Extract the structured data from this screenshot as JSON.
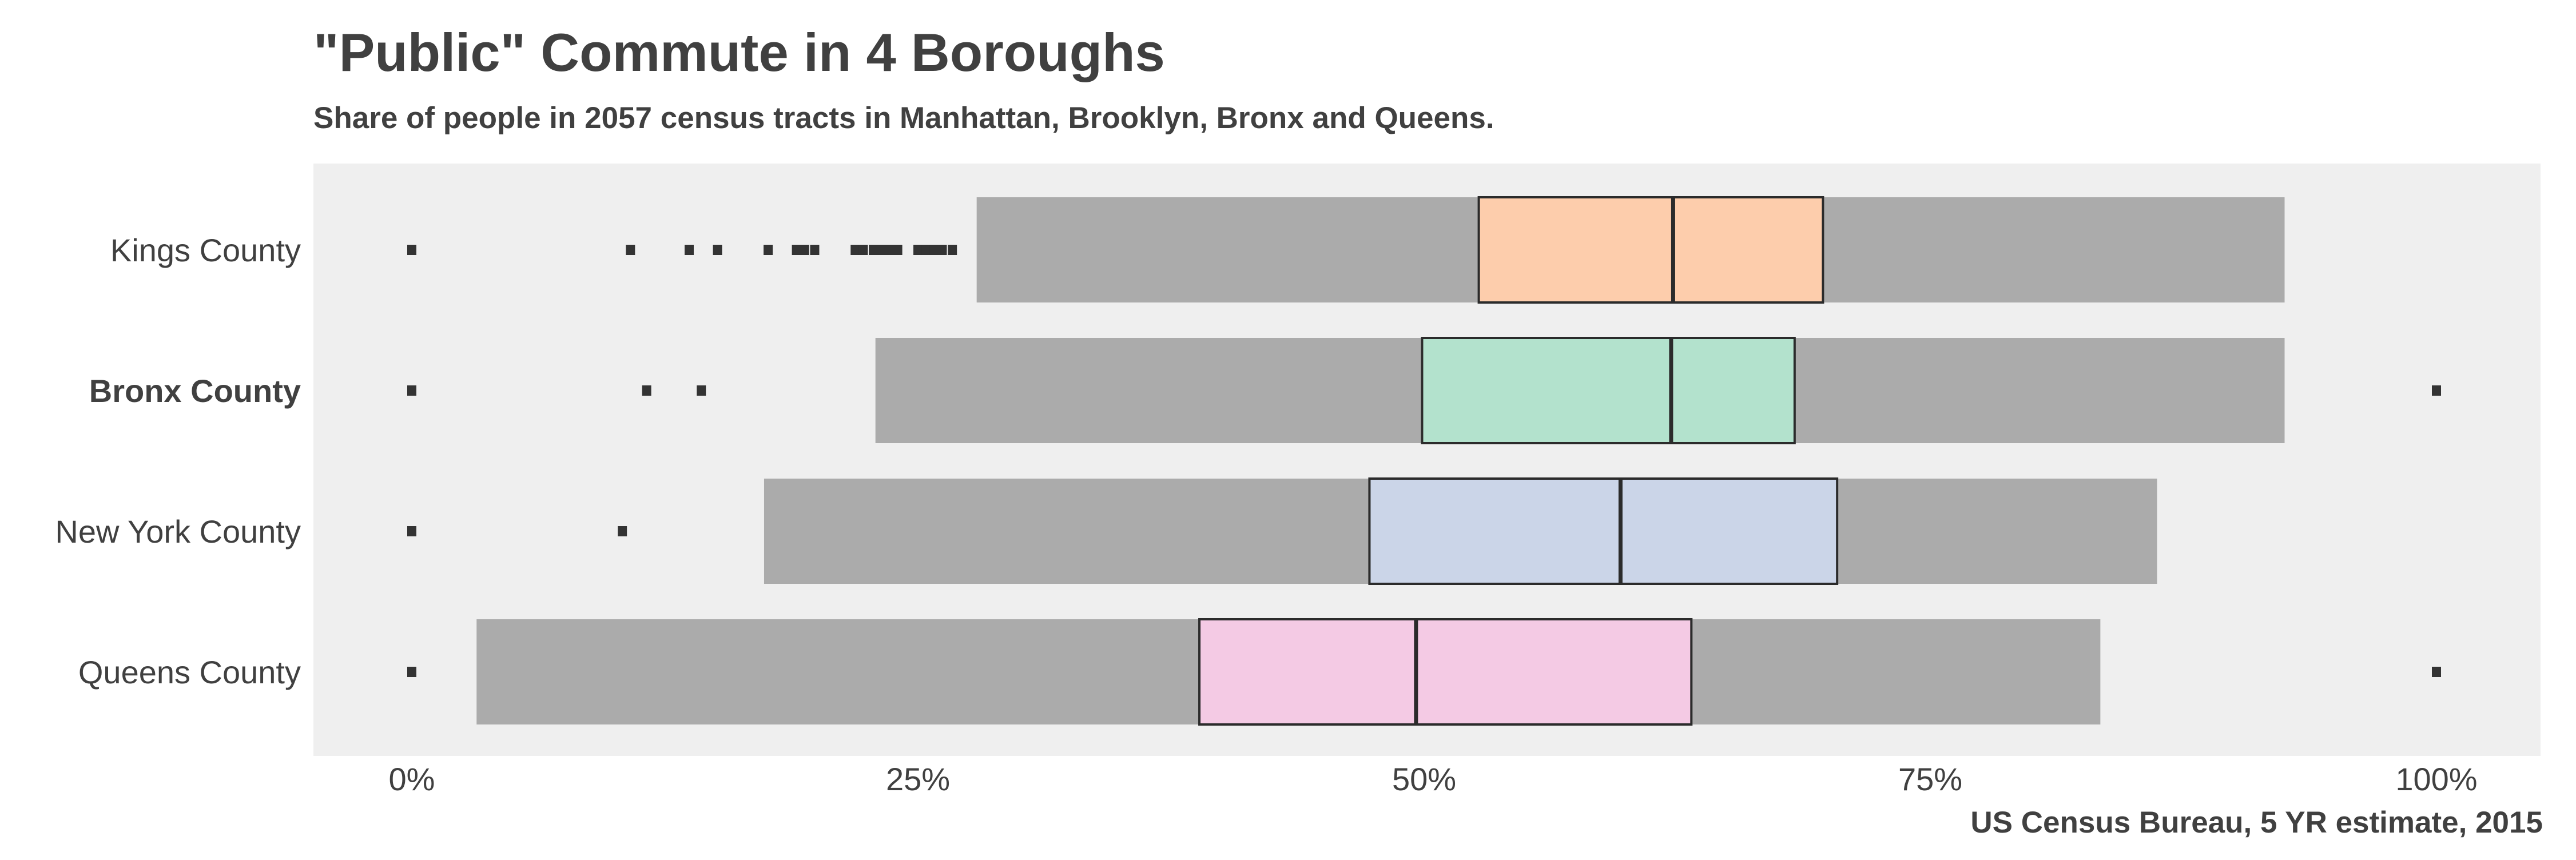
{
  "chart_data": {
    "type": "boxplot",
    "title": "\"Public\" Commute in 4 Boroughs",
    "subtitle": "Share of people in 2057 census tracts in Manhattan, Brooklyn, Bronx and Queens.",
    "caption": "US Census Bureau, 5 YR estimate, 2015",
    "x_ticks": [
      "0%",
      "25%",
      "50%",
      "75%",
      "100%"
    ],
    "xlim": [
      0,
      1
    ],
    "series": [
      {
        "name": "Kings County",
        "bold": false,
        "whisker_low": 0.279,
        "q1": 0.527,
        "median": 0.623,
        "q3": 0.697,
        "whisker_high": 0.925,
        "fill": "#fdcdac",
        "outliers": [
          0.0,
          0.108,
          0.137,
          0.151,
          0.176,
          0.19,
          0.194,
          0.199,
          0.219,
          0.223,
          0.228,
          0.232,
          0.236,
          0.24,
          0.25,
          0.254,
          0.258,
          0.262,
          0.267
        ]
      },
      {
        "name": "Bronx County",
        "bold": true,
        "whisker_low": 0.229,
        "q1": 0.499,
        "median": 0.622,
        "q3": 0.683,
        "whisker_high": 0.925,
        "fill": "#b3e2cd",
        "outliers": [
          0.0,
          0.116,
          0.143,
          1.0
        ]
      },
      {
        "name": "New York County",
        "bold": false,
        "whisker_low": 0.174,
        "q1": 0.473,
        "median": 0.597,
        "q3": 0.704,
        "whisker_high": 0.862,
        "fill": "#cbd5e8",
        "outliers": [
          0.0,
          0.104
        ]
      },
      {
        "name": "Queens County",
        "bold": false,
        "whisker_low": 0.032,
        "q1": 0.389,
        "median": 0.496,
        "q3": 0.632,
        "whisker_high": 0.834,
        "fill": "#f4cae4",
        "outliers": [
          0.0,
          1.0
        ]
      }
    ],
    "colors": {
      "panel": "#efefef",
      "whisker": "#ababab",
      "outline": "#2b2b2b",
      "outlier": "#333333",
      "text": "#404040"
    }
  }
}
